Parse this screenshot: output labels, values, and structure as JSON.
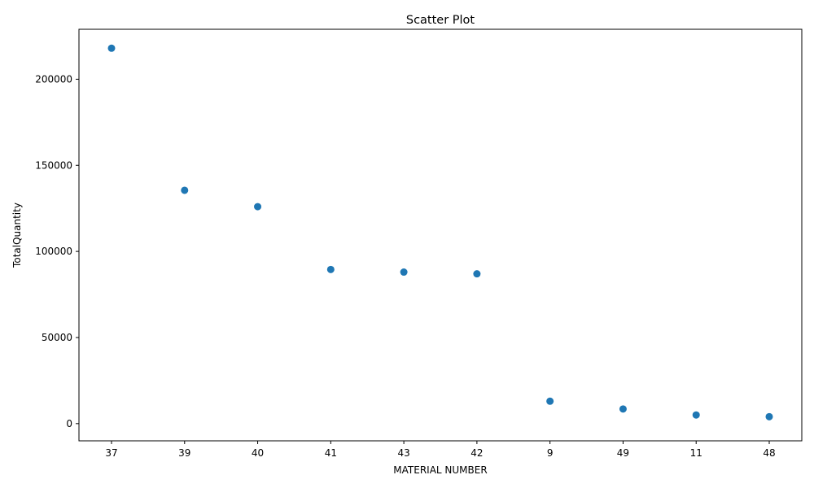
{
  "chart_data": {
    "type": "scatter",
    "title": "Scatter Plot",
    "xlabel": "MATERIAL NUMBER",
    "ylabel": "TotalQuantity",
    "categories": [
      "37",
      "39",
      "40",
      "41",
      "43",
      "42",
      "9",
      "49",
      "11",
      "48"
    ],
    "values": [
      218000,
      135500,
      126000,
      89500,
      88000,
      87000,
      13000,
      8500,
      5000,
      4000
    ],
    "y_ticks": [
      0,
      50000,
      100000,
      150000,
      200000
    ],
    "ylim": [
      -10000,
      229000
    ],
    "grid": false,
    "legend": "none",
    "colors": {
      "point": "#1f77b4",
      "axis": "#000000"
    }
  }
}
